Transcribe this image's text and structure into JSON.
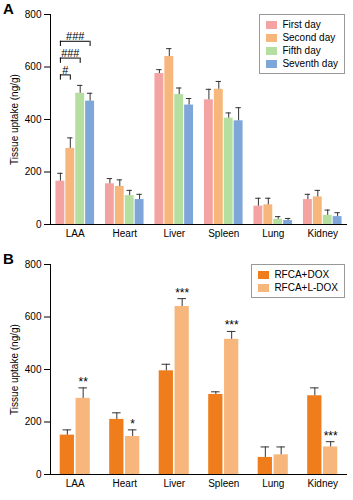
{
  "chart_data": [
    {
      "type": "bar",
      "title": "A",
      "y_label": "Tissue uptake (ng/g)",
      "categories": [
        "LAA",
        "Heart",
        "Liver",
        "Spleen",
        "Lung",
        "Kidney"
      ],
      "series": [
        {
          "name": "First day",
          "color": "#f4a3a3",
          "values": [
            165,
            155,
            575,
            475,
            70,
            95
          ],
          "errors": [
            30,
            20,
            15,
            40,
            30,
            20
          ]
        },
        {
          "name": "Second day",
          "color": "#f7b77c",
          "values": [
            290,
            145,
            640,
            515,
            75,
            105
          ],
          "errors": [
            40,
            25,
            30,
            30,
            25,
            25
          ]
        },
        {
          "name": "Fifth day",
          "color": "#b5dfa0",
          "values": [
            500,
            110,
            495,
            405,
            20,
            35
          ],
          "errors": [
            30,
            20,
            25,
            20,
            10,
            20
          ]
        },
        {
          "name": "Seventh day",
          "color": "#7fa6d8",
          "values": [
            470,
            95,
            455,
            395,
            15,
            30
          ],
          "errors": [
            30,
            20,
            25,
            50,
            8,
            15
          ]
        }
      ],
      "ylim": [
        0,
        800
      ],
      "yticks": [
        0,
        200,
        400,
        600,
        800
      ],
      "legend": "top-right",
      "annotations": [
        {
          "category": "LAA",
          "from": "First day",
          "to": "Second day",
          "label": "#"
        },
        {
          "category": "LAA",
          "from": "First day",
          "to": "Fifth day",
          "label": "###"
        },
        {
          "category": "LAA",
          "from": "First day",
          "to": "Seventh day",
          "label": "###"
        }
      ]
    },
    {
      "type": "bar",
      "title": "B",
      "y_label": "Tissue uptake (ng/g)",
      "categories": [
        "LAA",
        "Heart",
        "Liver",
        "Spleen",
        "Lung",
        "Kidney"
      ],
      "series": [
        {
          "name": "RFCA+DOX",
          "color": "#ef7d1c",
          "values": [
            150,
            210,
            395,
            305,
            65,
            300
          ],
          "errors": [
            20,
            25,
            25,
            10,
            40,
            30
          ]
        },
        {
          "name": "RFCA+L-DOX",
          "color": "#f7b77c",
          "values": [
            290,
            145,
            640,
            515,
            75,
            105
          ],
          "errors": [
            40,
            25,
            30,
            30,
            30,
            20
          ],
          "significance": [
            "**",
            "*",
            "***",
            "***",
            null,
            "***"
          ]
        }
      ],
      "ylim": [
        0,
        800
      ],
      "yticks": [
        0,
        200,
        400,
        600,
        800
      ],
      "legend": "top-right"
    }
  ]
}
